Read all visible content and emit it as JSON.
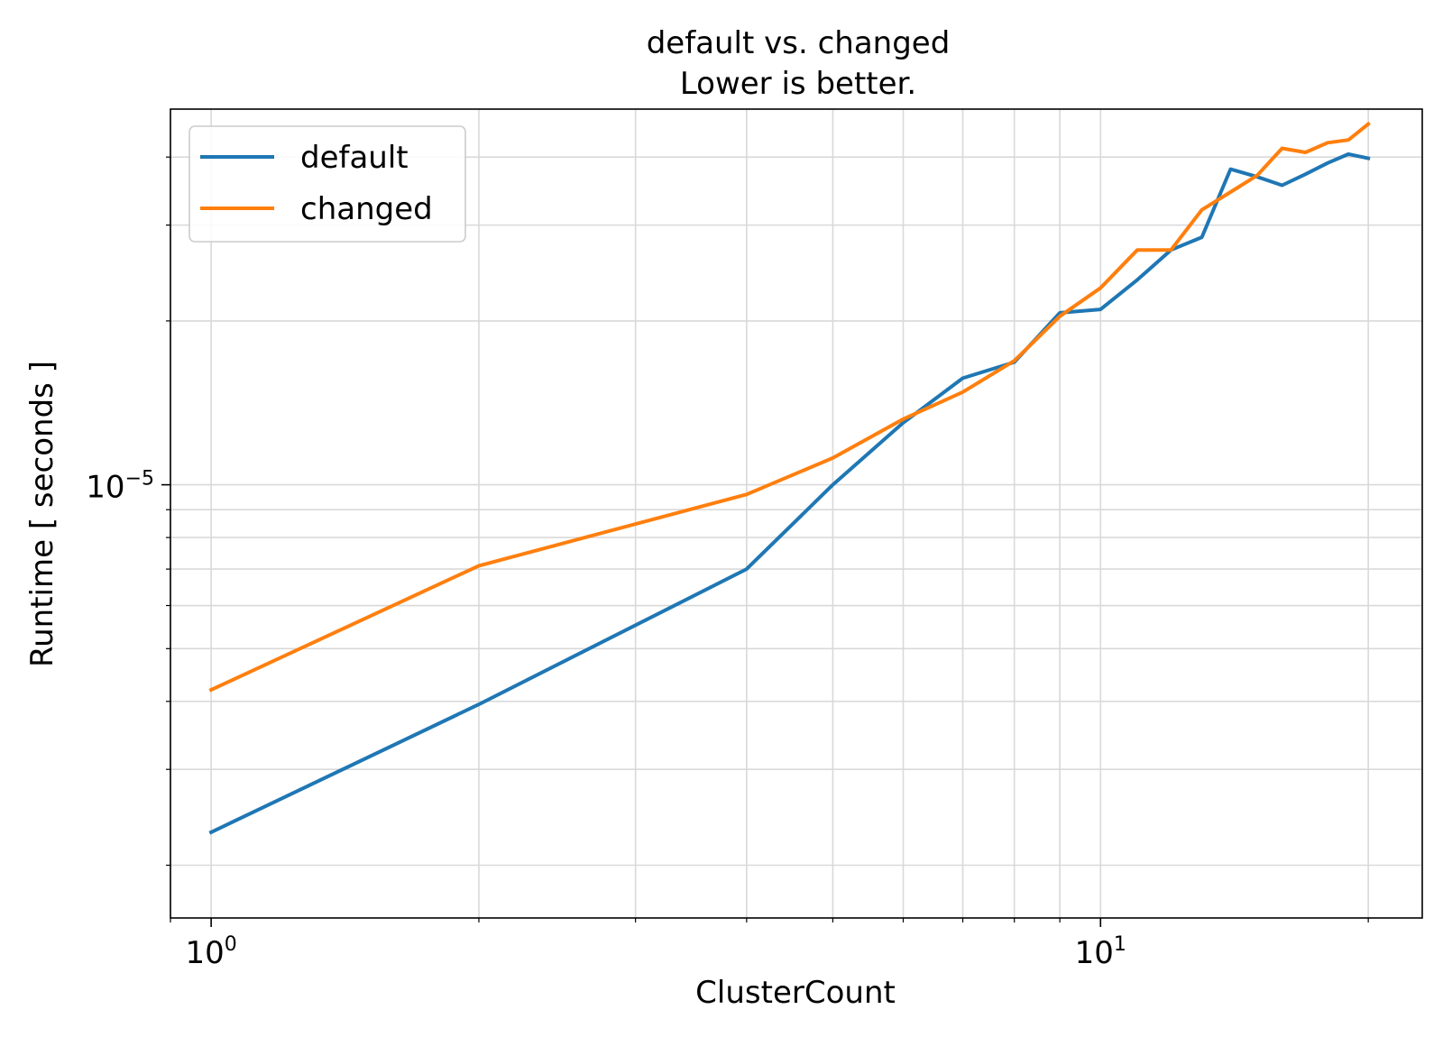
{
  "chart_data": {
    "type": "line",
    "title": "default vs. changed",
    "subtitle": "Lower is better.",
    "xlabel": "ClusterCount",
    "ylabel": "Runtime [ seconds ]",
    "xscale": "log",
    "yscale": "log",
    "xlim": [
      0.9,
      23
    ],
    "ylim": [
      1.6e-06,
      4.9e-05
    ],
    "grid": true,
    "legend_position": "top-left",
    "x_ticks": [
      {
        "value": 1,
        "base": "10",
        "exp": "0"
      },
      {
        "value": 10,
        "base": "10",
        "exp": "1"
      }
    ],
    "y_ticks": [
      {
        "value": 1e-05,
        "base": "10",
        "exp": "−5"
      }
    ],
    "x": [
      1,
      2,
      4,
      5,
      6,
      7,
      8,
      9,
      10,
      11,
      12,
      13,
      14,
      15,
      16,
      17,
      18,
      19,
      20
    ],
    "series": [
      {
        "name": "default",
        "color": "#1f77b4",
        "x": [
          1,
          2,
          4,
          5,
          6,
          7,
          8,
          9,
          10,
          11,
          12,
          13,
          14,
          15,
          16,
          17,
          18,
          19,
          20
        ],
        "values": [
          2.3e-06,
          3.95e-06,
          7e-06,
          1e-05,
          1.3e-05,
          1.57e-05,
          1.68e-05,
          2.07e-05,
          2.1e-05,
          2.38e-05,
          2.7e-05,
          2.85e-05,
          3.8e-05,
          3.68e-05,
          3.55e-05,
          3.72e-05,
          3.9e-05,
          4.05e-05,
          3.98e-05
        ]
      },
      {
        "name": "changed",
        "color": "#ff7f0e",
        "x": [
          1,
          2,
          4,
          5,
          6,
          7,
          8,
          9,
          10,
          11,
          12,
          13,
          14,
          15,
          16,
          17,
          18,
          19,
          20
        ],
        "values": [
          4.2e-06,
          7.1e-06,
          9.6e-06,
          1.12e-05,
          1.32e-05,
          1.48e-05,
          1.69e-05,
          2.04e-05,
          2.3e-05,
          2.7e-05,
          2.7e-05,
          3.2e-05,
          3.45e-05,
          3.7e-05,
          4.15e-05,
          4.08e-05,
          4.25e-05,
          4.3e-05,
          4.6e-05
        ]
      }
    ]
  }
}
